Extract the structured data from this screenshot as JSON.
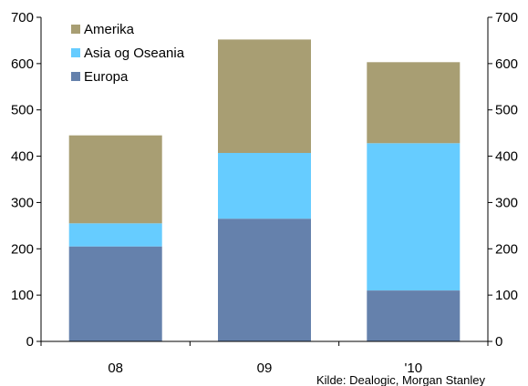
{
  "chart_data": {
    "type": "bar",
    "stacked": true,
    "categories": [
      "08",
      "09",
      "'10"
    ],
    "series": [
      {
        "name": "Europa",
        "values": [
          205,
          265,
          110
        ],
        "color": "#6581ac"
      },
      {
        "name": "Asia og Oseania",
        "values": [
          50,
          142,
          318
        ],
        "color": "#66ccff"
      },
      {
        "name": "Amerika",
        "values": [
          190,
          245,
          175
        ],
        "color": "#a89e73"
      }
    ],
    "legend_order": [
      "Amerika",
      "Asia og Oseania",
      "Europa"
    ],
    "ylim": [
      0,
      700
    ],
    "yticks": [
      0,
      100,
      200,
      300,
      400,
      500,
      600,
      700
    ],
    "y_axis_sides": [
      "left",
      "right"
    ],
    "legend_position": "top-left",
    "grid": false,
    "source": "Kilde: Dealogic, Morgan Stanley"
  }
}
